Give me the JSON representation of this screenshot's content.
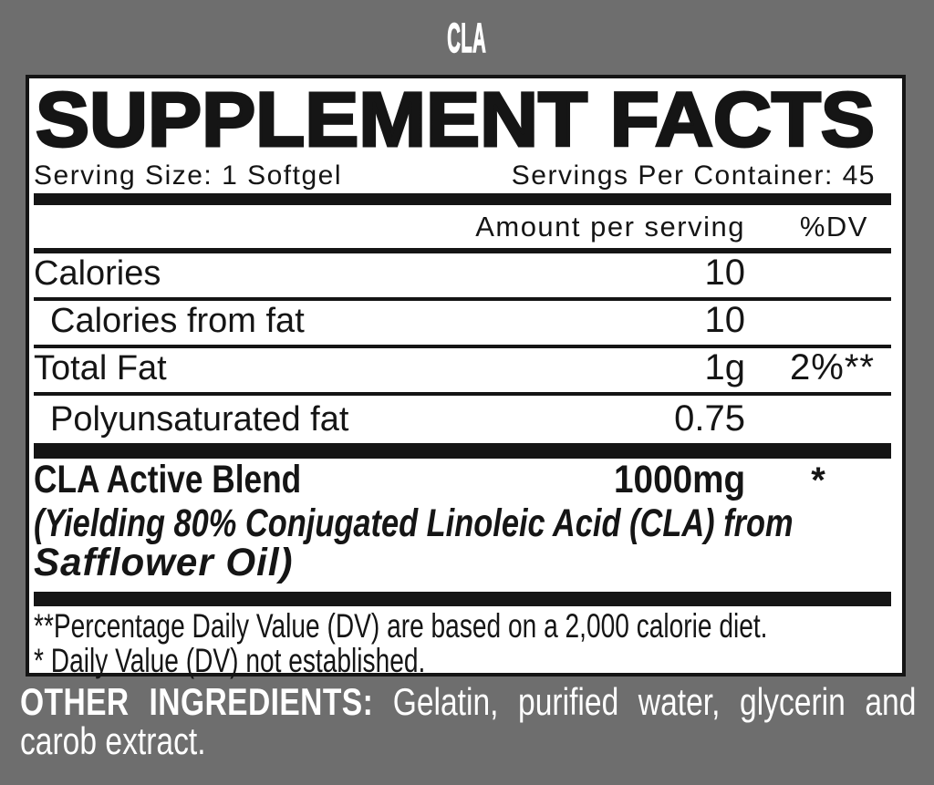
{
  "title": "CLA",
  "panel": {
    "heading": "SUPPLEMENT FACTS",
    "serving_size": "Serving Size: 1 Softgel",
    "servings_per_container": "Servings Per Container: 45",
    "columns": {
      "amount": "Amount per serving",
      "dv": "%DV"
    },
    "rows": [
      {
        "label": "Calories",
        "amount": "10",
        "dv": ""
      },
      {
        "label": "Calories from fat",
        "amount": "10",
        "dv": ""
      },
      {
        "label": "Total Fat",
        "amount": "1g",
        "dv": "2%**"
      },
      {
        "label": "Polyunsaturated fat",
        "amount": "0.75",
        "dv": ""
      }
    ],
    "blend": {
      "name": "CLA Active Blend",
      "amount": "1000mg",
      "dv": "*",
      "description_line1": "(Yielding 80% Conjugated Linoleic Acid (CLA) from",
      "description_line2": "Safflower Oil)"
    },
    "footnotes": [
      "**Percentage Daily Value (DV) are based on a 2,000 calorie diet.",
      "* Daily Value (DV) not established."
    ]
  },
  "other_ingredients": {
    "label": "OTHER INGREDIENTS:",
    "line1_rest": "Gelatin, purified water, glycerin and",
    "line2": "carob extract."
  },
  "colors": {
    "background": "#6e6e6e",
    "panel_background": "#ffffff",
    "ink": "#151515",
    "text_on_background": "#ffffff"
  }
}
